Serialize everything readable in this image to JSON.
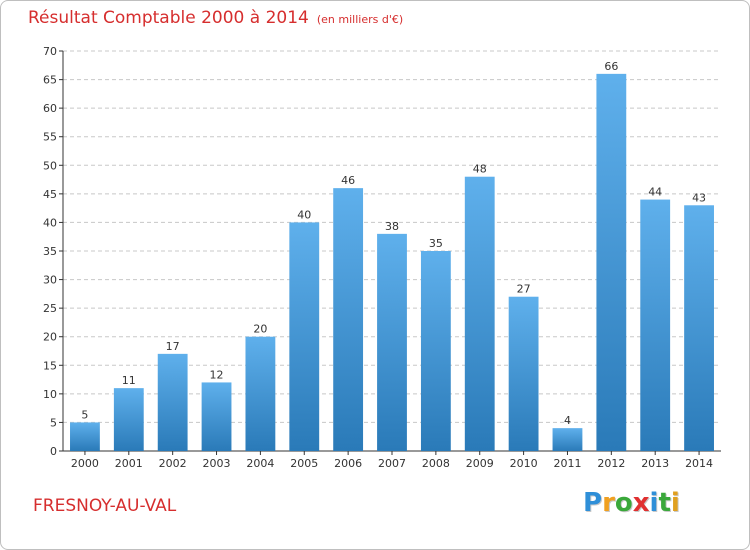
{
  "header": {
    "title": "Résultat Comptable 2000 à 2014",
    "unit": "(en milliers d'€)"
  },
  "footer": {
    "commune": "FRESNOY-AU-VAL",
    "brand_letters": [
      {
        "ch": "P",
        "color": "#2f8fd8"
      },
      {
        "ch": "r",
        "color": "#f0a020"
      },
      {
        "ch": "o",
        "color": "#3aa83a"
      },
      {
        "ch": "x",
        "color": "#e03030"
      },
      {
        "ch": "i",
        "color": "#2f8fd8"
      },
      {
        "ch": "t",
        "color": "#3aa83a"
      },
      {
        "ch": "i",
        "color": "#e0a020"
      }
    ]
  },
  "colors": {
    "bar_top": "#5fb0ec",
    "bar_bottom": "#2a7ab8",
    "grid": "#c8c8c8",
    "axis": "#333333",
    "title": "#d62e2e"
  },
  "chart_data": {
    "type": "bar",
    "categories": [
      "2000",
      "2001",
      "2002",
      "2003",
      "2004",
      "2005",
      "2006",
      "2007",
      "2008",
      "2009",
      "2010",
      "2011",
      "2012",
      "2013",
      "2014"
    ],
    "values": [
      5,
      11,
      17,
      12,
      20,
      40,
      46,
      38,
      35,
      48,
      27,
      4,
      66,
      44,
      43
    ],
    "ylim": [
      0,
      70
    ],
    "yticks": [
      0,
      5,
      10,
      15,
      20,
      25,
      30,
      35,
      40,
      45,
      50,
      55,
      60,
      65,
      70
    ],
    "grid": true,
    "data_labels": true
  }
}
